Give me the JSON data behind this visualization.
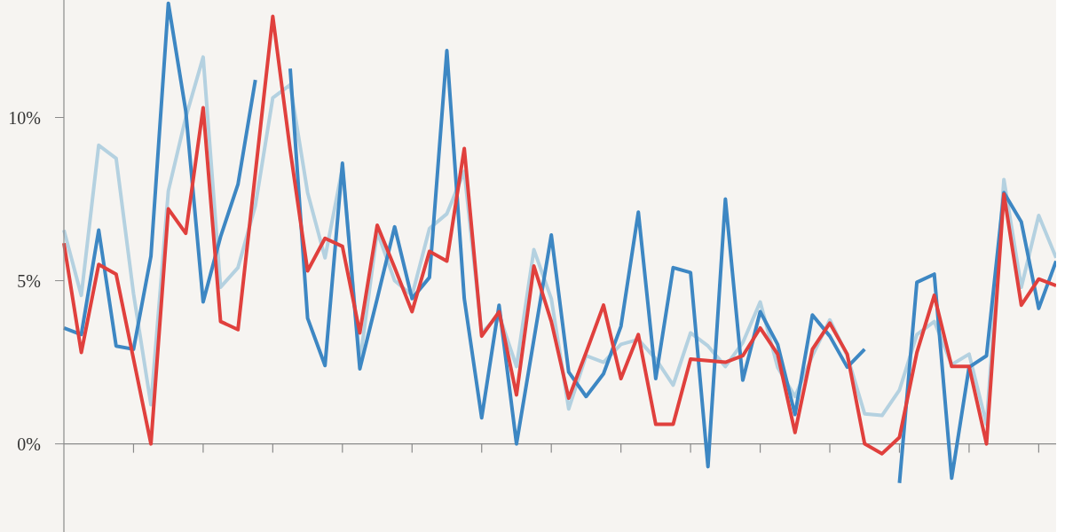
{
  "chart_data": {
    "type": "line",
    "categories": [
      null,
      null,
      null,
      null,
      null,
      null,
      null,
      null,
      null,
      null,
      null,
      null,
      null,
      null,
      null,
      null,
      null,
      null,
      null,
      null,
      null,
      null,
      null,
      null,
      null,
      null,
      null,
      null,
      null,
      null,
      null,
      null,
      null,
      null,
      null,
      null,
      null,
      null,
      null,
      null,
      null,
      null,
      null,
      null,
      null,
      null,
      null,
      null,
      null,
      null,
      null,
      null,
      null,
      null,
      null,
      null,
      null,
      null
    ],
    "series": [
      {
        "color": "#b4d1e0",
        "values": [
          6.55,
          4.55,
          9.15,
          8.75,
          4.6,
          1.2,
          7.75,
          10.0,
          11.85,
          4.8,
          5.4,
          7.3,
          10.6,
          11.0,
          7.7,
          5.7,
          8.45,
          2.5,
          6.5,
          5.0,
          4.55,
          6.6,
          7.05,
          8.35,
          3.4,
          3.95,
          2.37,
          5.95,
          4.45,
          1.07,
          2.7,
          2.5,
          3.05,
          3.2,
          2.6,
          1.8,
          3.4,
          3.0,
          2.37,
          3.1,
          4.35,
          2.35,
          1.45,
          2.7,
          3.8,
          2.7,
          0.92,
          0.87,
          1.65,
          3.35,
          3.75,
          2.43,
          2.75,
          0.6,
          8.1,
          4.8,
          7.0,
          5.7
        ]
      },
      {
        "color": "#3d87c3",
        "values": [
          3.55,
          3.35,
          6.55,
          3.0,
          2.9,
          5.75,
          13.5,
          10.2,
          4.35,
          6.35,
          7.95,
          11.15,
          null,
          11.5,
          3.85,
          2.4,
          8.6,
          2.3,
          4.45,
          6.65,
          4.45,
          5.1,
          12.05,
          4.45,
          0.8,
          4.25,
          0.0,
          3.2,
          6.4,
          2.2,
          1.45,
          2.15,
          3.6,
          7.1,
          2.0,
          5.4,
          5.25,
          -0.7,
          7.5,
          1.95,
          4.05,
          3.05,
          0.9,
          3.95,
          3.3,
          2.35,
          2.9,
          null,
          -1.2,
          4.95,
          5.2,
          -1.05,
          2.35,
          2.7,
          7.7,
          6.8,
          4.15,
          5.6
        ]
      },
      {
        "color": "#e0403d",
        "values": [
          6.15,
          2.8,
          5.5,
          5.2,
          2.6,
          0.0,
          7.2,
          6.45,
          10.3,
          3.75,
          3.5,
          8.3,
          13.1,
          9.0,
          5.3,
          6.3,
          6.05,
          3.4,
          6.7,
          5.4,
          4.05,
          5.9,
          5.6,
          9.05,
          3.3,
          4.05,
          1.5,
          5.45,
          3.75,
          1.4,
          2.8,
          4.25,
          2.0,
          3.35,
          0.6,
          0.6,
          2.6,
          2.55,
          2.5,
          2.7,
          3.55,
          2.75,
          0.35,
          2.9,
          3.7,
          2.75,
          0.0,
          -0.3,
          0.2,
          2.8,
          4.55,
          2.37,
          2.37,
          0.0,
          7.65,
          4.25,
          5.05,
          4.85
        ]
      }
    ],
    "ylim": [
      -2.7,
      13.6
    ],
    "yticks": [
      {
        "value": 0,
        "label": "0%"
      },
      {
        "value": 5,
        "label": "5%"
      },
      {
        "value": 10,
        "label": "10%"
      }
    ],
    "ref_lines": [
      {
        "axis": "y",
        "value": 0,
        "color": "#8a8a8a"
      }
    ],
    "grid": false,
    "legend": false,
    "marker": "none",
    "line_style": "solid"
  }
}
